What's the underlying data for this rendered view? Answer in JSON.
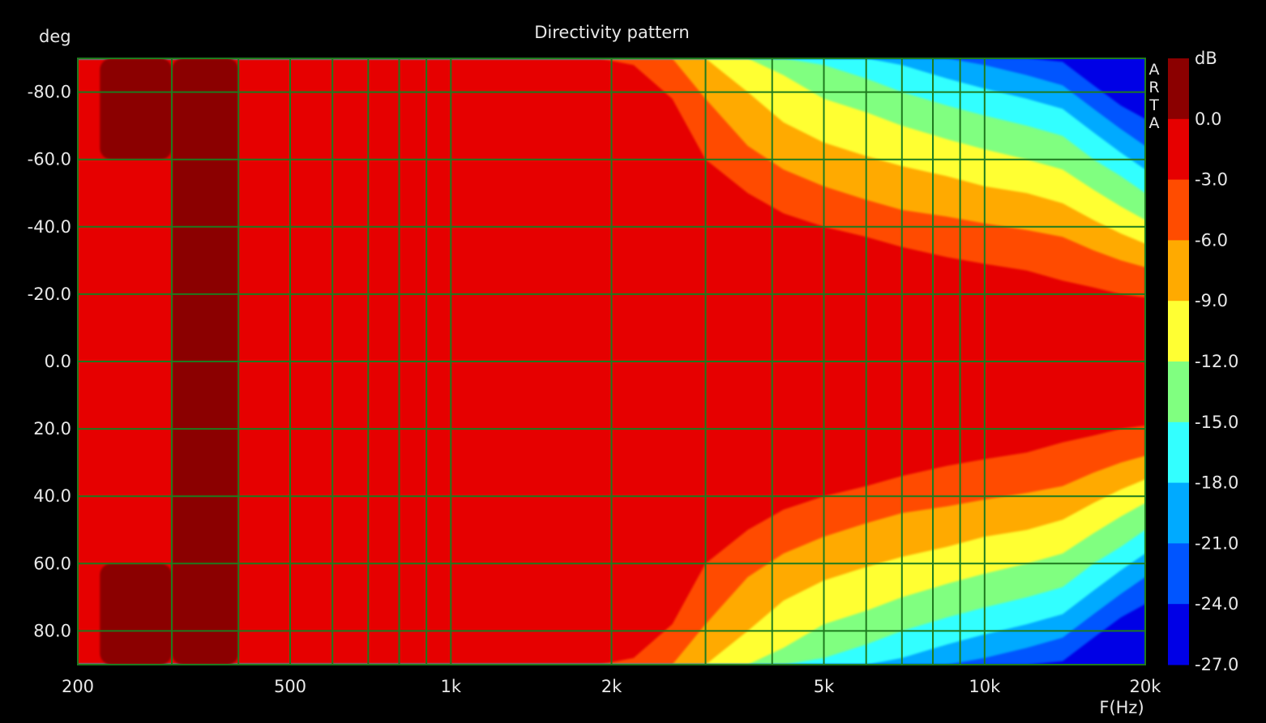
{
  "chart_data": {
    "type": "heatmap",
    "title": "Directivity pattern",
    "xlabel": "F(Hz)",
    "ylabel": "deg",
    "colorbar_label": "dB",
    "watermark": "ARTA",
    "x_scale": "log",
    "xlim": [
      200,
      20000
    ],
    "ylim": [
      -90,
      90
    ],
    "x_ticks": [
      200,
      500,
      1000,
      2000,
      5000,
      10000,
      20000
    ],
    "x_tick_labels": [
      "200",
      "500",
      "1k",
      "2k",
      "5k",
      "10k",
      "20k"
    ],
    "y_ticks": [
      -80,
      -60,
      -40,
      -20,
      0,
      20,
      40,
      60,
      80
    ],
    "y_tick_labels": [
      "-80.0",
      "-60.0",
      "-40.0",
      "-20.0",
      "0.0",
      "20.0",
      "40.0",
      "60.0",
      "80.0"
    ],
    "grid": true,
    "grid_color": "#1e7a1e",
    "colorbar": {
      "levels": [
        3.0,
        0.0,
        -3.0,
        -6.0,
        -9.0,
        -12.0,
        -15.0,
        -18.0,
        -21.0,
        -24.0,
        -27.0
      ],
      "tick_labels": [
        "0.0",
        "-3.0",
        "-6.0",
        "-9.0",
        "-12.0",
        "-15.0",
        "-18.0",
        "-21.0",
        "-24.0",
        "-27.0"
      ],
      "colors": [
        "#8b0000",
        "#e60000",
        "#ff4c00",
        "#ffaa00",
        "#ffff33",
        "#80ff80",
        "#33ffff",
        "#00aaff",
        "#0055ff",
        "#0000e6"
      ]
    },
    "contour_bands": [
      {
        "min_db": -3,
        "x": [
          200,
          1600,
          1900,
          2200,
          2600,
          3000,
          3600,
          4200,
          5000,
          6000,
          7000,
          8500,
          10000,
          12000,
          14000,
          16000,
          18000,
          20000
        ],
        "half_width_deg": [
          90,
          90,
          90,
          88,
          78,
          60,
          50,
          44,
          40,
          37,
          34,
          31,
          29,
          27,
          24,
          22,
          20,
          19
        ]
      },
      {
        "min_db": -6,
        "x": [
          200,
          1600,
          1900,
          2200,
          2600,
          3000,
          3600,
          4200,
          5000,
          6000,
          7000,
          8500,
          10000,
          12000,
          14000,
          16000,
          18000,
          20000
        ],
        "half_width_deg": [
          90,
          90,
          90,
          90,
          90,
          78,
          64,
          57,
          52,
          48,
          45,
          43,
          41,
          39,
          37,
          33,
          30,
          28
        ]
      },
      {
        "min_db": -9,
        "x": [
          200,
          1600,
          1900,
          2200,
          2600,
          3000,
          3600,
          4200,
          5000,
          6000,
          7000,
          8500,
          10000,
          12000,
          14000,
          16000,
          18000,
          20000
        ],
        "half_width_deg": [
          90,
          90,
          90,
          90,
          90,
          90,
          80,
          71,
          65,
          61,
          58,
          55,
          52,
          50,
          47,
          42,
          38,
          35
        ]
      },
      {
        "min_db": -12,
        "x": [
          200,
          1600,
          1900,
          2200,
          2600,
          3000,
          3600,
          4200,
          5000,
          6000,
          7000,
          8500,
          10000,
          12000,
          14000,
          16000,
          18000,
          20000
        ],
        "half_width_deg": [
          90,
          90,
          90,
          90,
          90,
          90,
          90,
          85,
          78,
          74,
          70,
          66,
          63,
          60,
          57,
          51,
          46,
          42
        ]
      },
      {
        "min_db": -15,
        "x": [
          200,
          1600,
          1900,
          2200,
          2600,
          3000,
          3600,
          4200,
          5000,
          6000,
          7000,
          8500,
          10000,
          12000,
          14000,
          16000,
          18000,
          20000
        ],
        "half_width_deg": [
          90,
          90,
          90,
          90,
          90,
          90,
          90,
          90,
          88,
          84,
          80,
          76,
          73,
          70,
          67,
          60,
          55,
          50
        ]
      },
      {
        "min_db": -18,
        "x": [
          200,
          1600,
          1900,
          2200,
          2600,
          3000,
          3600,
          4200,
          5000,
          6000,
          7000,
          8500,
          10000,
          12000,
          14000,
          16000,
          18000,
          20000
        ],
        "half_width_deg": [
          90,
          90,
          90,
          90,
          90,
          90,
          90,
          90,
          90,
          90,
          88,
          84,
          81,
          78,
          75,
          68,
          62,
          57
        ]
      },
      {
        "min_db": -21,
        "x": [
          200,
          1600,
          1900,
          2200,
          2600,
          3000,
          3600,
          4200,
          5000,
          6000,
          7000,
          8500,
          10000,
          12000,
          14000,
          16000,
          18000,
          20000
        ],
        "half_width_deg": [
          90,
          90,
          90,
          90,
          90,
          90,
          90,
          90,
          90,
          90,
          90,
          90,
          88,
          85,
          82,
          75,
          69,
          64
        ]
      },
      {
        "min_db": -24,
        "x": [
          200,
          1600,
          1900,
          2200,
          2600,
          3000,
          3600,
          4200,
          5000,
          6000,
          7000,
          8500,
          10000,
          12000,
          14000,
          16000,
          18000,
          20000
        ],
        "half_width_deg": [
          90,
          90,
          90,
          90,
          90,
          90,
          90,
          90,
          90,
          90,
          90,
          90,
          90,
          90,
          89,
          82,
          76,
          72
        ]
      }
    ],
    "hot_bands_above_0db": [
      {
        "x_from": 300,
        "x_to": 400,
        "deg_from": -90,
        "deg_to": 90
      },
      {
        "x_from": 220,
        "x_to": 300,
        "deg_from": -90,
        "deg_to": -60
      },
      {
        "x_from": 220,
        "x_to": 300,
        "deg_from": 60,
        "deg_to": 90
      }
    ]
  }
}
